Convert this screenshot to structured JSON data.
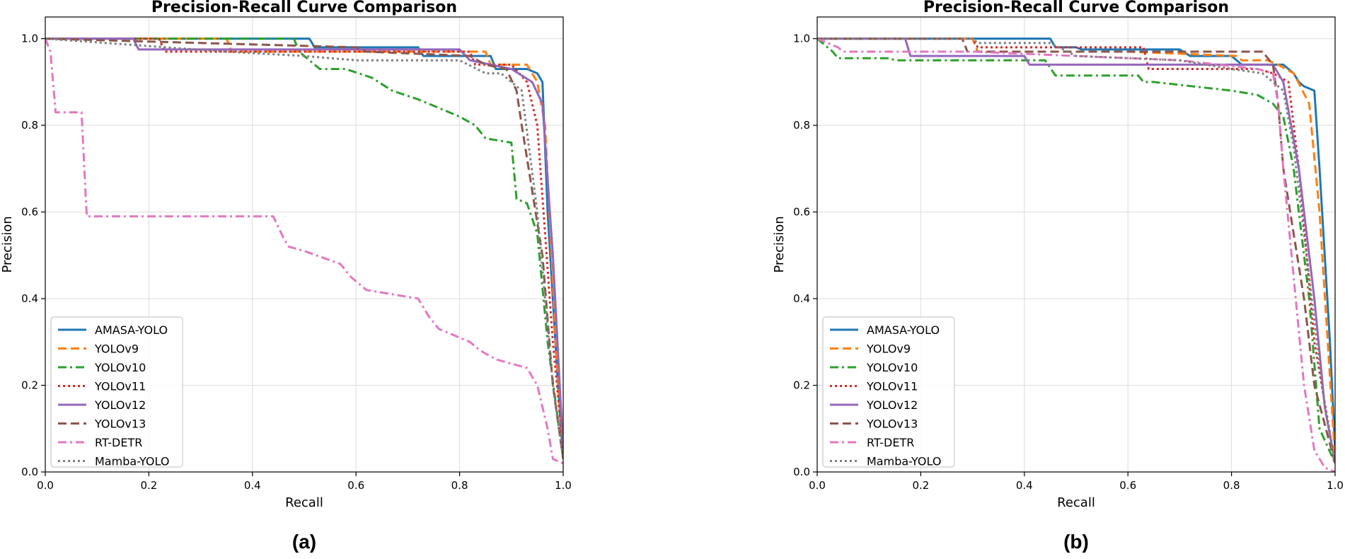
{
  "chart_data": [
    {
      "type": "line",
      "panel_label": "(a)",
      "title": "Precision-Recall Curve Comparison",
      "xlabel": "Recall",
      "ylabel": "Precision",
      "xlim": [
        0,
        1
      ],
      "ylim": [
        0,
        1.05
      ],
      "xticks": [
        "0.0",
        "0.2",
        "0.4",
        "0.6",
        "0.8",
        "1.0"
      ],
      "yticks": [
        "0.0",
        "0.2",
        "0.4",
        "0.6",
        "0.8",
        "1.0"
      ],
      "grid": true,
      "legend_position": "lower-left",
      "series": [
        {
          "name": "AMASA-YOLO",
          "color": "#1f77b4",
          "dash": "solid",
          "x": [
            0,
            0.51,
            0.52,
            0.72,
            0.73,
            0.86,
            0.87,
            0.93,
            0.95,
            0.96,
            0.97,
            0.99,
            1.0
          ],
          "y": [
            1.0,
            1.0,
            0.98,
            0.98,
            0.96,
            0.96,
            0.93,
            0.93,
            0.92,
            0.9,
            0.6,
            0.2,
            0.03
          ]
        },
        {
          "name": "YOLOv9",
          "color": "#ff7f0e",
          "dash": "dashed",
          "x": [
            0,
            0.35,
            0.36,
            0.85,
            0.86,
            0.93,
            0.95,
            0.965,
            0.99,
            1.0
          ],
          "y": [
            1.0,
            1.0,
            0.97,
            0.97,
            0.94,
            0.94,
            0.9,
            0.8,
            0.2,
            0.05
          ]
        },
        {
          "name": "YOLOv10",
          "color": "#2ca02c",
          "dash": "dashdot",
          "x": [
            0,
            0.48,
            0.49,
            0.51,
            0.53,
            0.58,
            0.63,
            0.67,
            0.72,
            0.76,
            0.8,
            0.83,
            0.85,
            0.9,
            0.91,
            0.93,
            0.95,
            0.97,
            1.0
          ],
          "y": [
            1.0,
            1.0,
            0.97,
            0.95,
            0.93,
            0.93,
            0.91,
            0.88,
            0.86,
            0.84,
            0.82,
            0.8,
            0.77,
            0.76,
            0.63,
            0.62,
            0.55,
            0.3,
            0.03
          ]
        },
        {
          "name": "YOLOv11",
          "color": "#d62728",
          "dash": "dotted",
          "x": [
            0,
            0.22,
            0.23,
            0.82,
            0.83,
            0.9,
            0.93,
            0.95,
            0.98,
            1.0
          ],
          "y": [
            1.0,
            1.0,
            0.97,
            0.97,
            0.94,
            0.94,
            0.9,
            0.8,
            0.3,
            0.05
          ]
        },
        {
          "name": "YOLOv12",
          "color": "#9467bd",
          "dash": "solid",
          "x": [
            0,
            0.17,
            0.18,
            0.8,
            0.82,
            0.9,
            0.94,
            0.96,
            0.98,
            1.0
          ],
          "y": [
            1.0,
            1.0,
            0.975,
            0.975,
            0.95,
            0.93,
            0.9,
            0.85,
            0.5,
            0.05
          ]
        },
        {
          "name": "YOLOv13",
          "color": "#8c564b",
          "dash": "dashed",
          "x": [
            0,
            0.6,
            0.62,
            0.82,
            0.85,
            0.89,
            0.91,
            0.92,
            0.94,
            0.96,
            0.98,
            1.0
          ],
          "y": [
            1.0,
            0.98,
            0.97,
            0.96,
            0.94,
            0.93,
            0.88,
            0.8,
            0.65,
            0.5,
            0.2,
            0.03
          ]
        },
        {
          "name": "RT-DETR",
          "color": "#e377c2",
          "dash": "dashdot",
          "x": [
            0,
            0.01,
            0.02,
            0.07,
            0.08,
            0.44,
            0.46,
            0.47,
            0.5,
            0.57,
            0.59,
            0.62,
            0.67,
            0.72,
            0.74,
            0.76,
            0.78,
            0.82,
            0.84,
            0.87,
            0.9,
            0.93,
            0.95,
            0.96,
            0.97,
            0.98,
            1.0
          ],
          "y": [
            1.0,
            0.97,
            0.83,
            0.83,
            0.59,
            0.59,
            0.54,
            0.52,
            0.51,
            0.48,
            0.45,
            0.42,
            0.41,
            0.4,
            0.36,
            0.33,
            0.32,
            0.3,
            0.28,
            0.26,
            0.25,
            0.24,
            0.2,
            0.15,
            0.1,
            0.03,
            0.02
          ]
        },
        {
          "name": "Mamba-YOLO",
          "color": "#7f7f7f",
          "dash": "dotted",
          "x": [
            0,
            0.35,
            0.5,
            0.6,
            0.8,
            0.85,
            0.88,
            0.92,
            0.95,
            0.98,
            1.0
          ],
          "y": [
            1.0,
            0.97,
            0.96,
            0.95,
            0.95,
            0.92,
            0.92,
            0.88,
            0.6,
            0.2,
            0.03
          ]
        }
      ]
    },
    {
      "type": "line",
      "panel_label": "(b)",
      "title": "Precision-Recall Curve Comparison",
      "xlabel": "Recall",
      "ylabel": "Precision",
      "xlim": [
        0,
        1
      ],
      "ylim": [
        0,
        1.05
      ],
      "xticks": [
        "0.0",
        "0.2",
        "0.4",
        "0.6",
        "0.8",
        "1.0"
      ],
      "yticks": [
        "0.0",
        "0.2",
        "0.4",
        "0.6",
        "0.8",
        "1.0"
      ],
      "grid": true,
      "legend_position": "lower-left",
      "series": [
        {
          "name": "AMASA-YOLO",
          "color": "#1f77b4",
          "dash": "solid",
          "x": [
            0,
            0.45,
            0.46,
            0.5,
            0.51,
            0.7,
            0.72,
            0.8,
            0.82,
            0.9,
            0.92,
            0.93,
            0.94,
            0.96,
            0.97,
            0.99,
            1.0
          ],
          "y": [
            1.0,
            1.0,
            0.98,
            0.98,
            0.975,
            0.975,
            0.96,
            0.96,
            0.94,
            0.94,
            0.92,
            0.9,
            0.89,
            0.88,
            0.7,
            0.3,
            0.05
          ]
        },
        {
          "name": "YOLOv9",
          "color": "#ff7f0e",
          "dash": "dashed",
          "x": [
            0,
            0.3,
            0.31,
            0.6,
            0.81,
            0.82,
            0.87,
            0.89,
            0.92,
            0.95,
            0.97,
            1.0
          ],
          "y": [
            1.0,
            1.0,
            0.97,
            0.97,
            0.96,
            0.95,
            0.95,
            0.94,
            0.92,
            0.85,
            0.6,
            0.03
          ]
        },
        {
          "name": "YOLOv10",
          "color": "#2ca02c",
          "dash": "dashdot",
          "x": [
            0,
            0.03,
            0.04,
            0.14,
            0.15,
            0.44,
            0.46,
            0.62,
            0.63,
            0.65,
            0.8,
            0.85,
            0.88,
            0.9,
            0.92,
            0.95,
            0.97,
            1.0
          ],
          "y": [
            1.0,
            0.97,
            0.955,
            0.955,
            0.95,
            0.95,
            0.915,
            0.915,
            0.9,
            0.9,
            0.88,
            0.87,
            0.85,
            0.82,
            0.7,
            0.4,
            0.1,
            0.02
          ]
        },
        {
          "name": "YOLOv11",
          "color": "#d62728",
          "dash": "dotted",
          "x": [
            0,
            0.3,
            0.31,
            0.63,
            0.64,
            0.85,
            0.88,
            0.91,
            0.93,
            0.96,
            1.0
          ],
          "y": [
            1.0,
            1.0,
            0.98,
            0.98,
            0.93,
            0.93,
            0.92,
            0.9,
            0.7,
            0.3,
            0.02
          ]
        },
        {
          "name": "YOLOv12",
          "color": "#9467bd",
          "dash": "solid",
          "x": [
            0,
            0.17,
            0.18,
            0.4,
            0.41,
            0.88,
            0.9,
            0.93,
            0.96,
            0.98,
            1.0
          ],
          "y": [
            1.0,
            1.0,
            0.96,
            0.96,
            0.94,
            0.94,
            0.9,
            0.7,
            0.4,
            0.15,
            0.02
          ]
        },
        {
          "name": "YOLOv13",
          "color": "#8c564b",
          "dash": "dashed",
          "x": [
            0,
            0.28,
            0.29,
            0.86,
            0.88,
            0.89,
            0.9,
            0.92,
            0.94,
            0.96,
            1.0
          ],
          "y": [
            1.0,
            1.0,
            0.97,
            0.97,
            0.94,
            0.85,
            0.7,
            0.55,
            0.4,
            0.2,
            0.02
          ]
        },
        {
          "name": "RT-DETR",
          "color": "#e377c2",
          "dash": "dashdot",
          "x": [
            0,
            0.04,
            0.05,
            0.3,
            0.5,
            0.7,
            0.85,
            0.88,
            0.89,
            0.9,
            0.92,
            0.94,
            0.96,
            0.98,
            1.0
          ],
          "y": [
            1.0,
            0.98,
            0.97,
            0.97,
            0.96,
            0.95,
            0.93,
            0.92,
            0.85,
            0.7,
            0.45,
            0.2,
            0.05,
            0.01,
            0.0
          ]
        },
        {
          "name": "Mamba-YOLO",
          "color": "#7f7f7f",
          "dash": "dotted",
          "x": [
            0,
            0.3,
            0.31,
            0.45,
            0.5,
            0.7,
            0.8,
            0.86,
            0.9,
            0.92,
            0.95,
            0.98,
            1.0
          ],
          "y": [
            1.0,
            1.0,
            0.99,
            0.99,
            0.96,
            0.95,
            0.93,
            0.92,
            0.88,
            0.75,
            0.45,
            0.15,
            0.02
          ]
        }
      ]
    }
  ]
}
